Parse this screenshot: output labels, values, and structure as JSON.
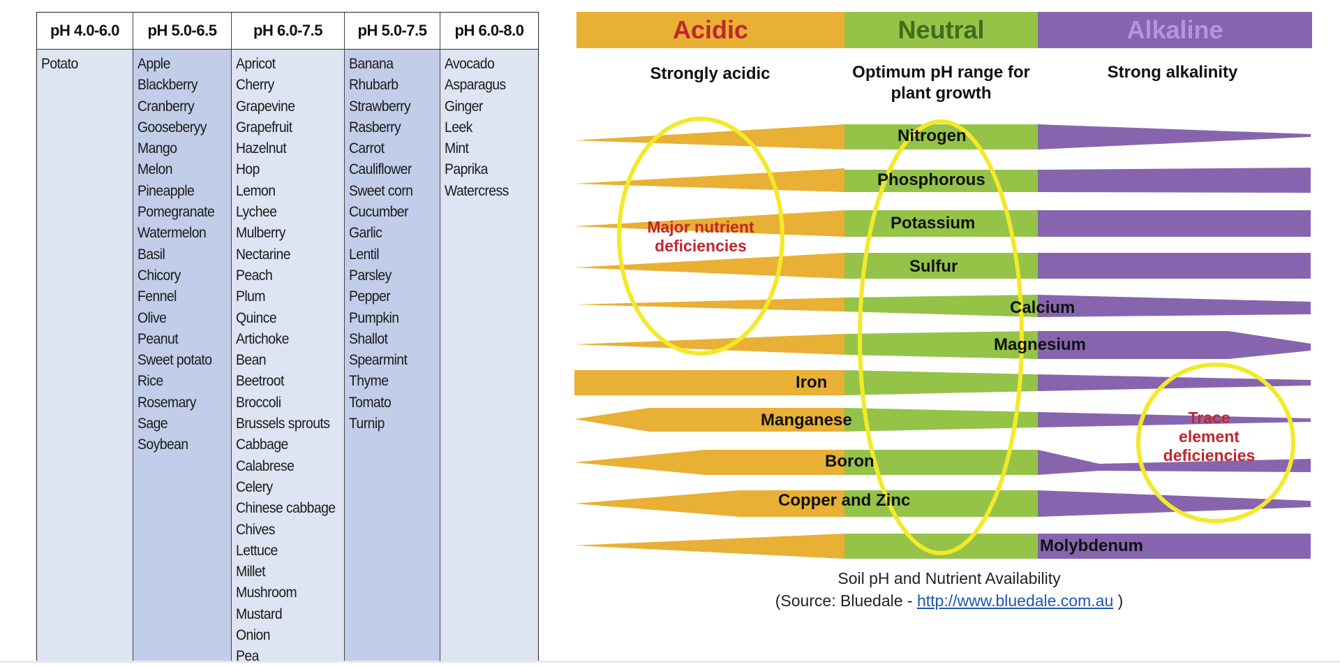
{
  "crop_table": {
    "columns": [
      {
        "header": "pH 4.0-6.0",
        "items": [
          "Potato"
        ]
      },
      {
        "header": "pH 5.0-6.5",
        "items": [
          "Apple",
          "Blackberry",
          "Cranberry",
          "Gooseberyy",
          "Mango",
          "Melon",
          "Pineapple",
          "Pomegranate",
          "Watermelon",
          "Basil",
          "Chicory",
          "Fennel",
          "Olive",
          "Peanut",
          "Sweet potato",
          "Rice",
          "Rosemary",
          "Sage",
          "Soybean"
        ]
      },
      {
        "header": "pH 6.0-7.5",
        "items": [
          "Apricot",
          "Cherry",
          "Grapevine",
          "Grapefruit",
          "Hazelnut",
          "Hop",
          "Lemon",
          "Lychee",
          "Mulberry",
          "Nectarine",
          "Peach",
          "Plum",
          "Quince",
          "Artichoke",
          "Bean",
          "Beetroot",
          "Broccoli",
          "Brussels sprouts",
          "Cabbage",
          "Calabrese",
          "Celery",
          "Chinese cabbage",
          "Chives",
          "Lettuce",
          "Millet",
          "Mushroom",
          "Mustard",
          "Onion",
          "Pea"
        ]
      },
      {
        "header": "pH 5.0-7.5",
        "items": [
          "Banana",
          "Rhubarb",
          "Strawberry",
          "Rasberry",
          "Carrot",
          "Cauliflower",
          "Sweet corn",
          "Cucumber",
          "Garlic",
          "Lentil",
          "Parsley",
          "Pepper",
          "Pumpkin",
          "Shallot",
          "Spearmint",
          "Thyme",
          "Tomato",
          "Turnip"
        ]
      },
      {
        "header": "pH 6.0-8.0",
        "items": [
          "Avocado",
          "Asparagus",
          "Ginger",
          "Leek",
          "Mint",
          "Paprika",
          "Watercress"
        ]
      }
    ]
  },
  "diagram": {
    "colors": {
      "acidic": "#e8b034",
      "neutral": "#94c348",
      "alkaline": "#8665ae",
      "acidic_text": "#c0262d",
      "neutral_text": "#3d6e1c",
      "alkaline_text": "#b493e6",
      "circle": "#f3e928",
      "callout": "#c0262d"
    },
    "zones": {
      "acidic": "Acidic",
      "neutral": "Neutral",
      "alkaline": "Alkaline"
    },
    "subheads": {
      "acidic": "Strongly acidic",
      "neutral": "Optimum pH range for plant growth",
      "alkaline": "Strong alkalinity"
    },
    "nutrients": [
      "Nitrogen",
      "Phosphorous",
      "Potassium",
      "Sulfur",
      "Calcium",
      "Magnesium",
      "Iron",
      "Manganese",
      "Boron",
      "Copper and Zinc",
      "Molybdenum"
    ],
    "callouts": {
      "major": "Major nutrient deficiencies",
      "trace": "Trace element deficiencies"
    },
    "caption": {
      "title": "Soil pH and Nutrient Availability",
      "source_prefix": "(Source: Bluedale - ",
      "link": "http://www.bluedale.com.au",
      "source_suffix": " )"
    }
  }
}
